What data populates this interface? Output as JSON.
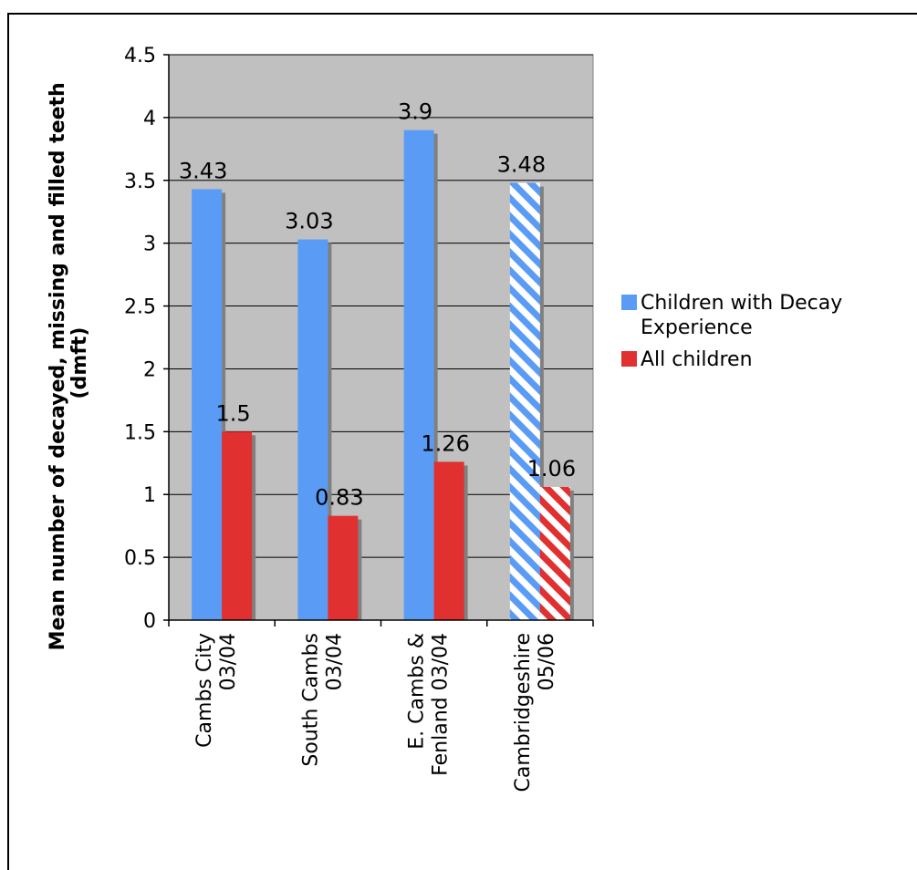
{
  "chart_data": {
    "type": "bar",
    "title": "",
    "xlabel": "",
    "ylabel_line1": "Mean number of decayed, missing and filled teeth",
    "ylabel_line2": "(dmft)",
    "ylim": [
      0,
      4.5
    ],
    "yticks": [
      "0",
      "0.5",
      "1",
      "1.5",
      "2",
      "2.5",
      "3",
      "3.5",
      "4",
      "4.5"
    ],
    "grid": true,
    "legend_position": "right",
    "categories": [
      [
        "Cambs City",
        "03/04"
      ],
      [
        "South Cambs",
        "03/04"
      ],
      [
        "E. Cambs &",
        "Fenland 03/04"
      ],
      [
        "Cambridgeshire",
        "05/06"
      ]
    ],
    "series": [
      {
        "name_lines": [
          "Children with Decay",
          "Experience"
        ],
        "color": "#5a9cf5",
        "values": [
          3.43,
          3.03,
          3.9,
          3.48
        ],
        "labels": [
          "3.43",
          "3.03",
          "3.9",
          "3.48"
        ]
      },
      {
        "name_lines": [
          "All children"
        ],
        "color": "#e0302f",
        "values": [
          1.5,
          0.83,
          1.26,
          1.06
        ],
        "labels": [
          "1.5",
          "0.83",
          "1.26",
          "1.06"
        ]
      }
    ],
    "hatched_categories": [
      3
    ],
    "colors": {
      "plot_background": "#c0c0c0",
      "shadow": "#808080"
    }
  }
}
